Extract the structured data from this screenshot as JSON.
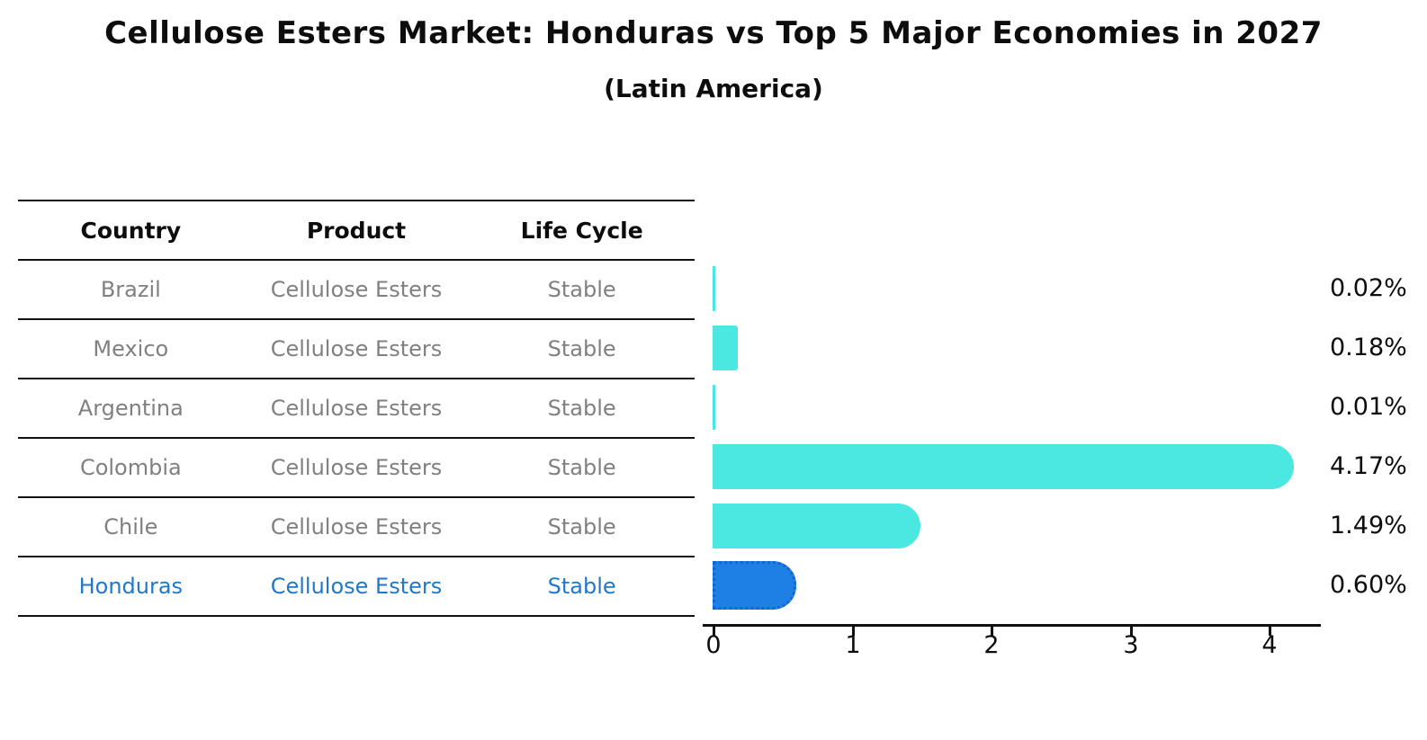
{
  "header": {
    "title": "Cellulose Esters Market: Honduras vs Top 5 Major Economies in 2027",
    "subtitle": "(Latin America)"
  },
  "table": {
    "headers": [
      "Country",
      "Product",
      "Life Cycle"
    ],
    "rows": [
      {
        "country": "Brazil",
        "product": "Cellulose Esters",
        "life_cycle": "Stable",
        "highlight": false
      },
      {
        "country": "Mexico",
        "product": "Cellulose Esters",
        "life_cycle": "Stable",
        "highlight": false
      },
      {
        "country": "Argentina",
        "product": "Cellulose Esters",
        "life_cycle": "Stable",
        "highlight": false
      },
      {
        "country": "Colombia",
        "product": "Cellulose Esters",
        "life_cycle": "Stable",
        "highlight": false
      },
      {
        "country": "Chile",
        "product": "Cellulose Esters",
        "life_cycle": "Stable",
        "highlight": false
      },
      {
        "country": "Honduras",
        "product": "Cellulose Esters",
        "life_cycle": "Stable",
        "highlight": true
      }
    ]
  },
  "chart_data": {
    "type": "bar",
    "orientation": "horizontal",
    "title": "Cellulose Esters Market: Honduras vs Top 5 Major Economies in 2027",
    "subtitle": "(Latin America)",
    "categories": [
      "Brazil",
      "Mexico",
      "Argentina",
      "Colombia",
      "Chile",
      "Honduras"
    ],
    "values": [
      0.02,
      0.18,
      0.01,
      4.17,
      1.49,
      0.6
    ],
    "value_labels": [
      "0.02%",
      "0.18%",
      "0.01%",
      "4.17%",
      "1.49%",
      "0.60%"
    ],
    "xlabel": "",
    "ylabel": "",
    "xlim": [
      0,
      4.35
    ],
    "xticks": [
      "0",
      "1",
      "2",
      "3",
      "4"
    ],
    "grid": false,
    "legend": false,
    "highlight_index": 5,
    "colors": {
      "default_bar": "#4ae8e1",
      "highlight_bar": "#1e7fe4",
      "highlight_border": "#1566cb",
      "highlight_text": "#1f78c9",
      "row_text": "#808080",
      "header_text": "#0d0d0d",
      "axis": "#111111"
    }
  }
}
